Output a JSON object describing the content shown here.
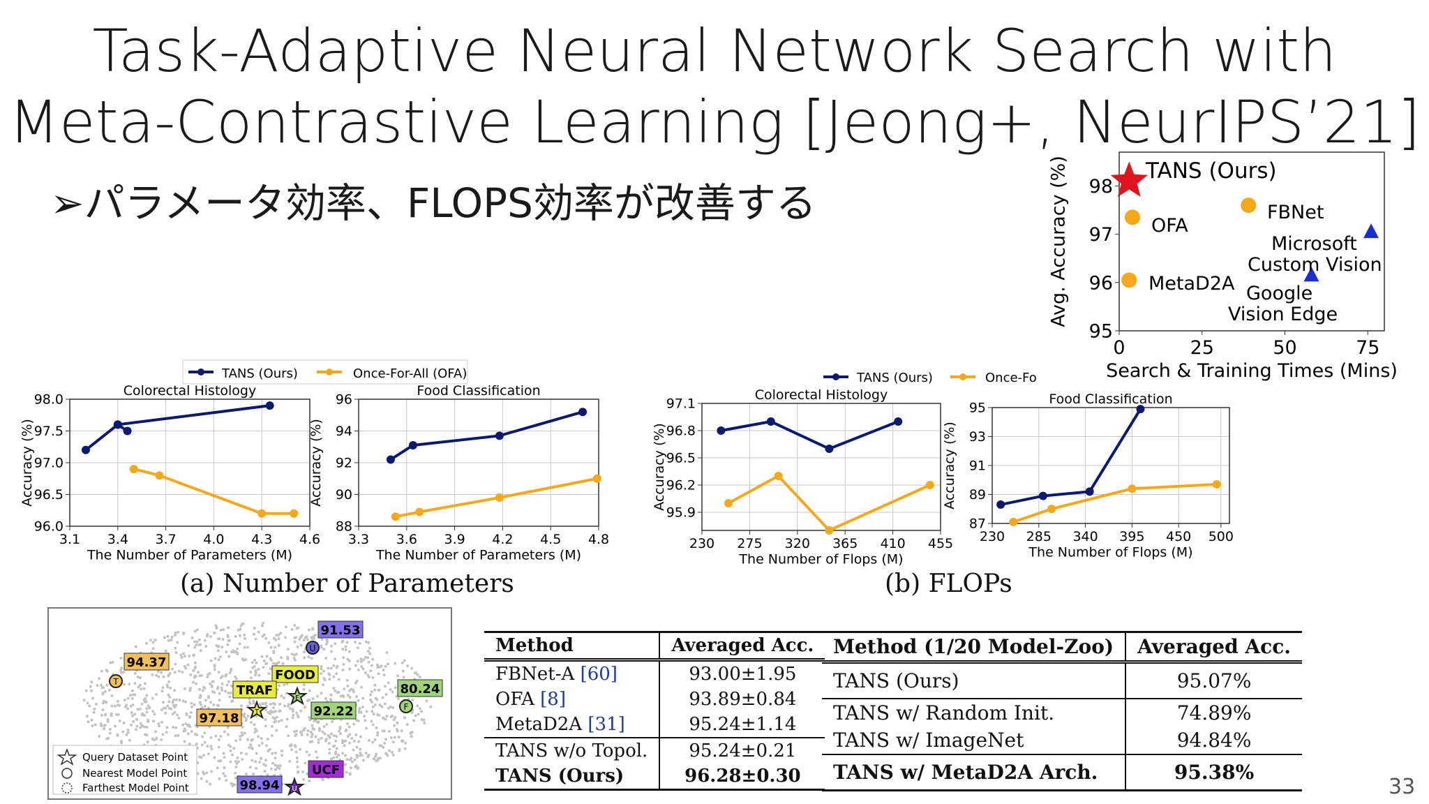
{
  "slide": {
    "title_line1": "Task-Adaptive Neural Network Search with",
    "title_line2": "Meta-Contrastive Learning [Jeong+, NeurIPS’21]",
    "bullet": "➢パラメータ効率、FLOPS効率が改善する",
    "page_number": "33"
  },
  "captions": {
    "params": "(a) Number of Parameters",
    "flops": "(b) FLOPs"
  },
  "legend": {
    "tans": "TANS (Ours)",
    "ofa": "Once-For-All (OFA)",
    "ofa_truncated": "Once-Fo"
  },
  "colors": {
    "tans": "#0c1a6e",
    "ofa": "#f6a81b",
    "star": "#e0141e",
    "triangle": "#1730d6",
    "grid": "#c8c8c8"
  },
  "chart_data": [
    {
      "id": "params_colorectal",
      "type": "line",
      "title": "Colorectal Histology",
      "xlabel": "The Number of Parameters (M)",
      "ylabel": "Accuracy (%)",
      "xlim": [
        3.1,
        4.6
      ],
      "ylim": [
        96.0,
        98.0
      ],
      "xticks": [
        3.1,
        3.4,
        3.7,
        4.0,
        4.3,
        4.6
      ],
      "xtick_labels": [
        "3.1",
        "3.4",
        "3.7",
        "4.0",
        "4.3",
        "4.6"
      ],
      "yticks": [
        96.0,
        96.5,
        97.0,
        97.5,
        98.0
      ],
      "ytick_labels": [
        "96.0",
        "96.5",
        "97.0",
        "97.5",
        "98.0"
      ],
      "series": [
        {
          "name": "TANS (Ours)",
          "color": "#0c1a6e",
          "points": [
            [
              3.2,
              97.2
            ],
            [
              3.4,
              97.6
            ],
            [
              3.46,
              97.5
            ],
            [
              3.4,
              97.6
            ],
            [
              4.35,
              97.9
            ]
          ]
        },
        {
          "name": "Once-For-All (OFA)",
          "color": "#f6a81b",
          "points": [
            [
              3.5,
              96.9
            ],
            [
              3.66,
              96.8
            ],
            [
              4.3,
              96.2
            ],
            [
              4.5,
              96.2
            ]
          ]
        }
      ]
    },
    {
      "id": "params_food",
      "type": "line",
      "title": "Food Classification",
      "xlabel": "The Number of Parameters (M)",
      "ylabel": "Accuracy (%)",
      "xlim": [
        3.3,
        4.8
      ],
      "ylim": [
        88,
        96
      ],
      "xticks": [
        3.3,
        3.6,
        3.9,
        4.2,
        4.5,
        4.8
      ],
      "xtick_labels": [
        "3.3",
        "3.6",
        "3.9",
        "4.2",
        "4.5",
        "4.8"
      ],
      "yticks": [
        88,
        90,
        92,
        94,
        96
      ],
      "ytick_labels": [
        "88",
        "90",
        "92",
        "94",
        "96"
      ],
      "series": [
        {
          "name": "TANS (Ours)",
          "color": "#0c1a6e",
          "points": [
            [
              3.5,
              92.2
            ],
            [
              3.64,
              93.1
            ],
            [
              4.18,
              93.7
            ],
            [
              4.7,
              95.2
            ]
          ]
        },
        {
          "name": "Once-For-All (OFA)",
          "color": "#f6a81b",
          "points": [
            [
              3.53,
              88.6
            ],
            [
              3.68,
              88.9
            ],
            [
              4.18,
              89.8
            ],
            [
              4.79,
              91.0
            ]
          ]
        }
      ]
    },
    {
      "id": "flops_colorectal",
      "type": "line",
      "title": "Colorectal Histology",
      "xlabel": "The Number of Flops (M)",
      "ylabel": "Accuracy (%)",
      "xlim": [
        230,
        455
      ],
      "ylim": [
        95.7,
        97.1
      ],
      "xticks": [
        230,
        275,
        320,
        365,
        410,
        455
      ],
      "xtick_labels": [
        "230",
        "275",
        "320",
        "365",
        "410",
        "455"
      ],
      "yticks": [
        95.9,
        96.2,
        96.5,
        96.8,
        97.1
      ],
      "ytick_labels": [
        "95.9",
        "96.2",
        "96.5",
        "96.8",
        "97.1"
      ],
      "series": [
        {
          "name": "TANS (Ours)",
          "color": "#0c1a6e",
          "points": [
            [
              248,
              96.8
            ],
            [
              295,
              96.9
            ],
            [
              350,
              96.6
            ],
            [
              415,
              96.9
            ]
          ]
        },
        {
          "name": "Once-For-All (OFA)",
          "color": "#f6a81b",
          "points": [
            [
              255,
              96.0
            ],
            [
              302,
              96.3
            ],
            [
              350,
              95.7
            ],
            [
              445,
              96.2
            ]
          ]
        }
      ]
    },
    {
      "id": "flops_food",
      "type": "line",
      "title": "Food Classification",
      "xlabel": "The Number of Flops (M)",
      "ylabel": "Accuracy (%)",
      "xlim": [
        230,
        510
      ],
      "ylim": [
        87,
        95
      ],
      "xticks": [
        230,
        285,
        340,
        395,
        450,
        500
      ],
      "xtick_labels": [
        "230",
        "285",
        "340",
        "395",
        "450",
        "500"
      ],
      "yticks": [
        87,
        89,
        91,
        93,
        95
      ],
      "ytick_labels": [
        "87",
        "89",
        "91",
        "93",
        "95"
      ],
      "series": [
        {
          "name": "TANS (Ours)",
          "color": "#0c1a6e",
          "points": [
            [
              240,
              88.3
            ],
            [
              290,
              88.9
            ],
            [
              345,
              89.2
            ],
            [
              405,
              94.9
            ]
          ]
        },
        {
          "name": "Once-For-All (OFA)",
          "color": "#f6a81b",
          "points": [
            [
              255,
              87.1
            ],
            [
              300,
              88.0
            ],
            [
              395,
              89.4
            ],
            [
              495,
              89.7
            ]
          ]
        }
      ]
    },
    {
      "id": "search_time",
      "type": "scatter",
      "xlabel": "Search & Training Times (Mins)",
      "ylabel": "Avg. Accuracy (%)",
      "xlim": [
        0,
        80
      ],
      "ylim": [
        95,
        98.7
      ],
      "xticks": [
        0,
        25,
        50,
        75
      ],
      "xtick_labels": [
        "0",
        "25",
        "50",
        "75"
      ],
      "yticks": [
        95,
        96,
        97,
        98
      ],
      "ytick_labels": [
        "95",
        "96",
        "97",
        "98"
      ],
      "points": [
        {
          "label": "TANS (Ours)",
          "x": 3,
          "y": 98.1,
          "marker": "star",
          "color": "#e0141e"
        },
        {
          "label": "OFA",
          "x": 4,
          "y": 97.35,
          "marker": "circle",
          "color": "#f6a81b"
        },
        {
          "label": "FBNet",
          "x": 39,
          "y": 97.6,
          "marker": "circle",
          "color": "#f6a81b"
        },
        {
          "label": "MetaD2A",
          "x": 3,
          "y": 96.05,
          "marker": "circle",
          "color": "#f6a81b"
        },
        {
          "label": "Microsoft Custom Vision",
          "x": 76,
          "y": 97.05,
          "marker": "triangle",
          "color": "#1730d6"
        },
        {
          "label": "Google Vision Edge",
          "x": 58,
          "y": 96.15,
          "marker": "triangle",
          "color": "#1730d6"
        }
      ]
    }
  ],
  "scatter_labels": {
    "tans": "TANS (Ours)",
    "ofa": "OFA",
    "fbnet": "FBNet",
    "metad2a": "MetaD2A",
    "microsoft_line1": "Microsoft",
    "microsoft_line2": "Custom Vision",
    "google_line1": "Google",
    "google_line2": "Vision Edge"
  },
  "tsne": {
    "legend": {
      "query": "Query Dataset Point",
      "nearest": "Nearest Model Point",
      "farthest": "Farthest Model Point"
    },
    "tags": [
      {
        "name": "ucf-accuracy",
        "text": "91.53",
        "bg": "#8470e8"
      },
      {
        "name": "t-accuracy",
        "text": "94.37",
        "bg": "#f5c05a"
      },
      {
        "name": "food-label",
        "text": "FOOD",
        "bg": "#e9ec3c"
      },
      {
        "name": "traf-label",
        "text": "TRAF",
        "bg": "#e9ec3c"
      },
      {
        "name": "f-accuracy",
        "text": "80.24",
        "bg": "#9fd47a"
      },
      {
        "name": "food-accuracy",
        "text": "92.22",
        "bg": "#9fd47a"
      },
      {
        "name": "traf-accuracy",
        "text": "97.18",
        "bg": "#f5c05a"
      },
      {
        "name": "ucf-label",
        "text": "UCF",
        "bg": "#a42bd8"
      },
      {
        "name": "u-accuracy",
        "text": "98.94",
        "bg": "#8470e8"
      }
    ],
    "markers": [
      {
        "name": "u-marker",
        "text": "U"
      },
      {
        "name": "t-marker",
        "text": "T"
      },
      {
        "name": "f-marker",
        "text": "F"
      },
      {
        "name": "food-marker",
        "text": "F"
      },
      {
        "name": "traf-marker",
        "text": "T"
      },
      {
        "name": "u2-marker",
        "text": "U"
      }
    ]
  },
  "table1": {
    "headers": [
      "Method",
      "Averaged Acc."
    ],
    "rows_group1": [
      {
        "method": "FBNet-A",
        "ref": "[60]",
        "acc": "93.00±1.95"
      },
      {
        "method": "OFA",
        "ref": "[8]",
        "acc": "93.89±0.84"
      },
      {
        "method": "MetaD2A",
        "ref": "[31]",
        "acc": "95.24±1.14"
      }
    ],
    "rows_group2": [
      {
        "method": "TANS w/o Topol.",
        "acc": "95.24±0.21",
        "bold": false
      },
      {
        "method": "TANS (Ours)",
        "acc": "96.28±0.30",
        "bold": true
      }
    ]
  },
  "table2": {
    "headers": [
      "Method (1/20 Model-Zoo)",
      "Averaged Acc."
    ],
    "rows": [
      {
        "method": "TANS (Ours)",
        "acc": "95.07%"
      },
      {
        "method": "TANS w/ Random Init.",
        "acc": "74.89%"
      },
      {
        "method": "TANS w/ ImageNet",
        "acc": "94.84%"
      },
      {
        "method": "TANS w/ MetaD2A Arch.",
        "acc": "95.38%"
      }
    ]
  }
}
